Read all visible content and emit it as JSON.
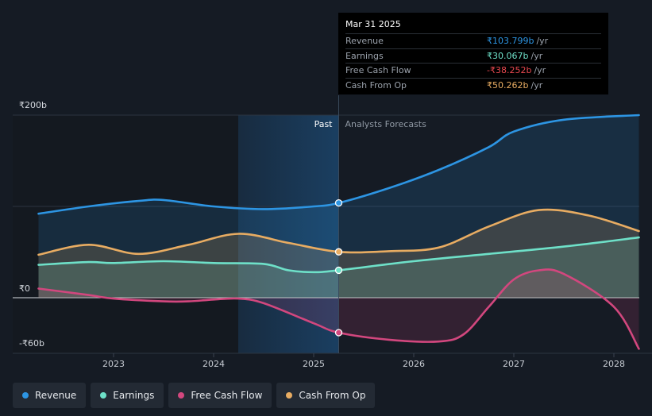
{
  "chart_data": {
    "type": "line",
    "title": "",
    "yaxis": {
      "labels": [
        "₹200b",
        "₹0",
        "-₹60b"
      ],
      "unit": "₹b"
    },
    "xaxis": {
      "tick_labels": [
        "2023",
        "2024",
        "2025",
        "2026",
        "2027",
        "2028"
      ]
    },
    "divider": {
      "past_label": "Past",
      "forecast_label": "Analysts Forecasts",
      "date": 2025.25
    },
    "series": [
      {
        "name": "Revenue",
        "color": "#2d95e3",
        "points": [
          [
            2022.25,
            92
          ],
          [
            2022.75,
            100
          ],
          [
            2023.25,
            106
          ],
          [
            2023.5,
            107
          ],
          [
            2024.0,
            100
          ],
          [
            2024.5,
            97
          ],
          [
            2025.0,
            100
          ],
          [
            2025.25,
            103.8
          ],
          [
            2025.75,
            120
          ],
          [
            2026.25,
            140
          ],
          [
            2026.75,
            165
          ],
          [
            2027.0,
            182
          ],
          [
            2027.5,
            195
          ],
          [
            2028.25,
            200
          ]
        ]
      },
      {
        "name": "Earnings",
        "color": "#6ee0c8",
        "points": [
          [
            2022.25,
            36
          ],
          [
            2022.75,
            39
          ],
          [
            2023.0,
            38
          ],
          [
            2023.5,
            40
          ],
          [
            2024.0,
            38
          ],
          [
            2024.5,
            37
          ],
          [
            2024.75,
            30
          ],
          [
            2025.0,
            28
          ],
          [
            2025.25,
            30.067
          ],
          [
            2026.0,
            40
          ],
          [
            2026.75,
            48
          ],
          [
            2027.5,
            56
          ],
          [
            2028.25,
            66
          ]
        ]
      },
      {
        "name": "Free Cash Flow",
        "color": "#d2477e",
        "points": [
          [
            2022.25,
            10
          ],
          [
            2022.75,
            3
          ],
          [
            2023.0,
            -1
          ],
          [
            2023.5,
            -4
          ],
          [
            2023.75,
            -4
          ],
          [
            2024.0,
            -2
          ],
          [
            2024.25,
            -1
          ],
          [
            2024.5,
            -6
          ],
          [
            2025.0,
            -28
          ],
          [
            2025.25,
            -38.252
          ],
          [
            2025.75,
            -46
          ],
          [
            2026.25,
            -48
          ],
          [
            2026.5,
            -40
          ],
          [
            2026.75,
            -10
          ],
          [
            2027.0,
            20
          ],
          [
            2027.25,
            30
          ],
          [
            2027.5,
            26
          ],
          [
            2028.0,
            -10
          ],
          [
            2028.25,
            -56
          ]
        ]
      },
      {
        "name": "Cash From Op",
        "color": "#e8ac62",
        "points": [
          [
            2022.25,
            47
          ],
          [
            2022.75,
            58
          ],
          [
            2023.25,
            48
          ],
          [
            2023.75,
            58
          ],
          [
            2024.25,
            70
          ],
          [
            2024.75,
            60
          ],
          [
            2025.25,
            50.262
          ],
          [
            2025.75,
            51
          ],
          [
            2026.25,
            55
          ],
          [
            2026.75,
            78
          ],
          [
            2027.25,
            96
          ],
          [
            2027.75,
            90
          ],
          [
            2028.25,
            73
          ]
        ]
      }
    ]
  },
  "tooltip": {
    "date": "Mar 31 2025",
    "rows": [
      {
        "label": "Revenue",
        "value": "₹103.799b",
        "unit": "/yr",
        "color": "#2d95e3"
      },
      {
        "label": "Earnings",
        "value": "₹30.067b",
        "unit": "/yr",
        "color": "#6ee0c8"
      },
      {
        "label": "Free Cash Flow",
        "value": "-₹38.252b",
        "unit": "/yr",
        "color": "#e8484f"
      },
      {
        "label": "Cash From Op",
        "value": "₹50.262b",
        "unit": "/yr",
        "color": "#e8ac62"
      }
    ]
  },
  "legend": [
    {
      "label": "Revenue",
      "color": "#2d95e3"
    },
    {
      "label": "Earnings",
      "color": "#6ee0c8"
    },
    {
      "label": "Free Cash Flow",
      "color": "#d2477e"
    },
    {
      "label": "Cash From Op",
      "color": "#e8ac62"
    }
  ]
}
